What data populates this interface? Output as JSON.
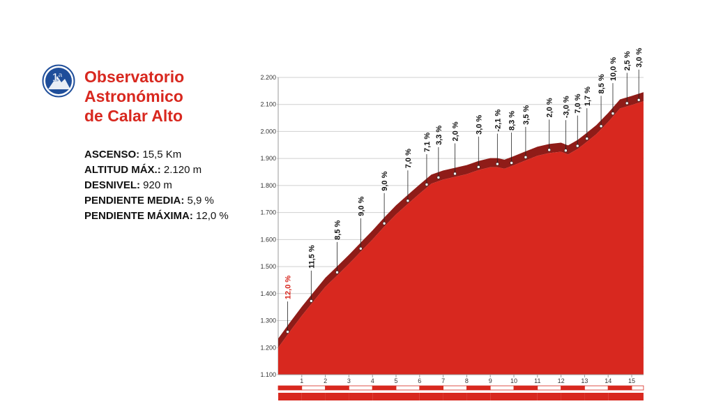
{
  "climb": {
    "category": "1ª",
    "name_lines": [
      "Observatorio",
      "Astronómico",
      "de Calar Alto"
    ],
    "stats": [
      {
        "label": "ASCENSO:",
        "value": " 15,5 Km"
      },
      {
        "label": "ALTITUD MÁX.:",
        "value": " 2.120 m"
      },
      {
        "label": "DESNIVEL:",
        "value": " 920 m"
      },
      {
        "label": "PENDIENTE MEDIA:",
        "value": " 5,9 %"
      },
      {
        "label": "PENDIENTE MÁXIMA:",
        "value": " 12,0 %"
      }
    ]
  },
  "colors": {
    "profile_fill": "#d8281f",
    "profile_top": "#8f1c18",
    "accent_text": "#d8281f",
    "badge_blue": "#1f4e9a",
    "grid": "#cfcfcf"
  },
  "chart_data": {
    "type": "area",
    "xlabel": "",
    "ylabel": "",
    "xlim": [
      0,
      15.5
    ],
    "ylim": [
      1100,
      2200
    ],
    "grid": true,
    "y_ticks": [
      1100,
      1200,
      1300,
      1400,
      1500,
      1600,
      1700,
      1800,
      1900,
      2000,
      2100,
      2200
    ],
    "y_tick_labels": [
      "1.100",
      "1.200",
      "1.300",
      "1.400",
      "1.500",
      "1.600",
      "1.700",
      "1.800",
      "1.900",
      "2.000",
      "2.100",
      "2.200"
    ],
    "x_ticks": [
      1,
      2,
      3,
      4,
      5,
      6,
      7,
      8,
      9,
      10,
      11,
      12,
      13,
      14,
      15
    ],
    "x_tick_labels": [
      "1",
      "2",
      "3",
      "4",
      "5",
      "6",
      "7",
      "8",
      "9",
      "10",
      "11",
      "12",
      "13",
      "14",
      "15"
    ],
    "profile": {
      "x": [
        0,
        0.5,
        1,
        1.5,
        2,
        2.5,
        3,
        3.5,
        4,
        4.5,
        5,
        5.5,
        6,
        6.5,
        7,
        7.5,
        8,
        8.5,
        9,
        9.3,
        9.6,
        10,
        10.5,
        11,
        11.5,
        12,
        12.3,
        12.7,
        13,
        13.5,
        14,
        14.5,
        15,
        15.5
      ],
      "y": [
        1200,
        1260,
        1318,
        1372,
        1425,
        1467,
        1510,
        1555,
        1600,
        1648,
        1693,
        1732,
        1770,
        1807,
        1822,
        1832,
        1842,
        1857,
        1868,
        1868,
        1862,
        1875,
        1893,
        1910,
        1920,
        1925,
        1915,
        1935,
        1955,
        1990,
        2035,
        2085,
        2098,
        2112
      ]
    },
    "gradient_markers": [
      {
        "x": 0.4,
        "y": 1247,
        "label": "12,0 %",
        "highlight": true
      },
      {
        "x": 1.4,
        "y": 1361,
        "label": "11,5 %"
      },
      {
        "x": 2.5,
        "y": 1467,
        "label": "8,5 %"
      },
      {
        "x": 3.5,
        "y": 1555,
        "label": "9,0 %"
      },
      {
        "x": 4.5,
        "y": 1648,
        "label": "9,0 %"
      },
      {
        "x": 5.5,
        "y": 1732,
        "label": "7,0 %"
      },
      {
        "x": 6.3,
        "y": 1792,
        "label": "7,1 %"
      },
      {
        "x": 6.8,
        "y": 1818,
        "label": "3,3 %"
      },
      {
        "x": 7.5,
        "y": 1832,
        "label": "2,0 %"
      },
      {
        "x": 8.5,
        "y": 1857,
        "label": "3,0 %"
      },
      {
        "x": 9.3,
        "y": 1868,
        "label": "-2,1 %"
      },
      {
        "x": 9.9,
        "y": 1872,
        "label": "8,3 %"
      },
      {
        "x": 10.5,
        "y": 1893,
        "label": "3,5 %"
      },
      {
        "x": 11.5,
        "y": 1920,
        "label": "2,0 %"
      },
      {
        "x": 12.2,
        "y": 1918,
        "label": "-3,0 %"
      },
      {
        "x": 12.7,
        "y": 1935,
        "label": "7,0 %"
      },
      {
        "x": 13.1,
        "y": 1962,
        "label": "1,7 %"
      },
      {
        "x": 13.7,
        "y": 2008,
        "label": "8,5 %"
      },
      {
        "x": 14.2,
        "y": 2055,
        "label": "10,0 %"
      },
      {
        "x": 14.8,
        "y": 2093,
        "label": "2,5 %"
      },
      {
        "x": 15.3,
        "y": 2105,
        "label": "3,0 %"
      }
    ]
  }
}
